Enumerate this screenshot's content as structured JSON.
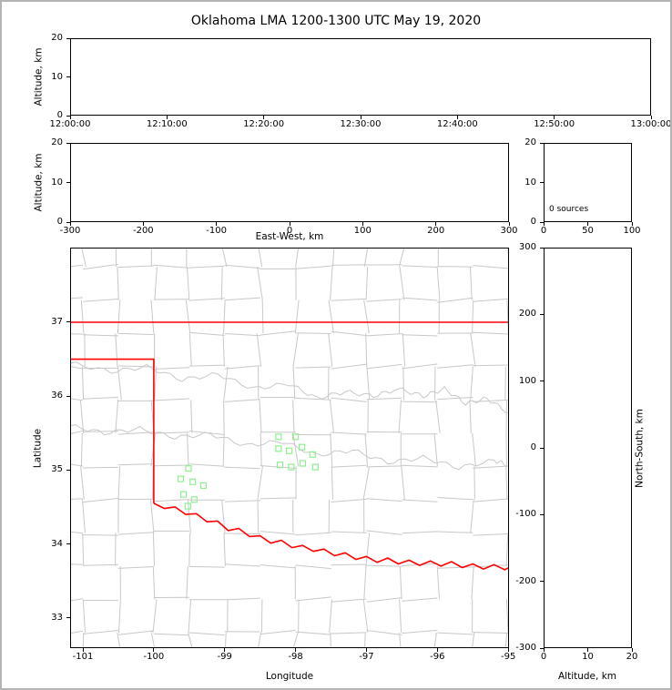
{
  "title": "Oklahoma LMA 1200-1300 UTC May 19, 2020",
  "colors": {
    "background": "#ffffff",
    "outer_border": "#b4b4b4",
    "axis": "#000000"
  },
  "chart_data": [
    {
      "panel": "time-altitude",
      "type": "scatter",
      "ylabel": "Altitude, km",
      "x_tick_labels": [
        "12:00:00",
        "12:10:00",
        "12:20:00",
        "12:30:00",
        "12:40:00",
        "12:50:00",
        "13:00:00"
      ],
      "ylim": [
        0,
        20
      ],
      "yticks": [
        0,
        10,
        20
      ],
      "points": []
    },
    {
      "panel": "ew-altitude",
      "type": "scatter",
      "xlabel": "East-West, km",
      "ylabel": "Altitude, km",
      "xlim": [
        -300,
        300
      ],
      "xticks": [
        -300,
        -200,
        -100,
        0,
        100,
        200,
        300
      ],
      "ylim": [
        0,
        20
      ],
      "yticks": [
        0,
        10,
        20
      ],
      "points": []
    },
    {
      "panel": "source-histogram",
      "type": "line",
      "annotation": "0 sources",
      "xlim": [
        0,
        100
      ],
      "xticks": [
        0,
        50,
        100
      ],
      "ylim": [
        0,
        20
      ],
      "yticks": [
        0,
        10,
        20
      ],
      "points": []
    },
    {
      "panel": "map",
      "type": "scatter",
      "xlabel": "Longitude",
      "ylabel": "Latitude",
      "xlim": [
        -101.18,
        -94.99
      ],
      "xticks": [
        -101,
        -100,
        -99,
        -98,
        -97,
        -96,
        -95
      ],
      "ylim": [
        32.59,
        38.01
      ],
      "yticks": [
        33,
        34,
        35,
        36,
        37
      ],
      "colors": {
        "state_border": "#ff0000",
        "county_lines": "#c8c8c8",
        "station_marker": "#90EE90"
      },
      "stations": [
        [
          -98.24,
          35.45
        ],
        [
          -98.0,
          35.45
        ],
        [
          -98.24,
          35.29
        ],
        [
          -98.09,
          35.26
        ],
        [
          -97.91,
          35.31
        ],
        [
          -98.22,
          35.07
        ],
        [
          -98.06,
          35.04
        ],
        [
          -97.9,
          35.09
        ],
        [
          -97.76,
          35.21
        ],
        [
          -97.72,
          35.04
        ],
        [
          -99.51,
          35.02
        ],
        [
          -99.62,
          34.88
        ],
        [
          -99.45,
          34.84
        ],
        [
          -99.3,
          34.79
        ],
        [
          -99.58,
          34.67
        ],
        [
          -99.43,
          34.6
        ],
        [
          -99.52,
          34.51
        ]
      ],
      "state_border": {
        "north": [
          [
            -101.18,
            37.0
          ],
          [
            -94.99,
            37.0
          ]
        ],
        "west_panhandle": [
          [
            -101.18,
            36.5
          ],
          [
            -100.0,
            36.5
          ],
          [
            -100.0,
            34.55
          ]
        ],
        "red_river": [
          [
            -100.0,
            34.55
          ],
          [
            -99.85,
            34.48
          ],
          [
            -99.7,
            34.5
          ],
          [
            -99.55,
            34.4
          ],
          [
            -99.4,
            34.41
          ],
          [
            -99.25,
            34.3
          ],
          [
            -99.1,
            34.31
          ],
          [
            -98.95,
            34.18
          ],
          [
            -98.8,
            34.21
          ],
          [
            -98.65,
            34.1
          ],
          [
            -98.5,
            34.11
          ],
          [
            -98.35,
            34.01
          ],
          [
            -98.2,
            34.05
          ],
          [
            -98.05,
            33.95
          ],
          [
            -97.9,
            33.98
          ],
          [
            -97.75,
            33.9
          ],
          [
            -97.6,
            33.93
          ],
          [
            -97.45,
            33.84
          ],
          [
            -97.3,
            33.88
          ],
          [
            -97.15,
            33.79
          ],
          [
            -97.0,
            33.83
          ],
          [
            -96.85,
            33.75
          ],
          [
            -96.7,
            33.81
          ],
          [
            -96.55,
            33.73
          ],
          [
            -96.4,
            33.78
          ],
          [
            -96.25,
            33.71
          ],
          [
            -96.1,
            33.77
          ],
          [
            -95.95,
            33.7
          ],
          [
            -95.8,
            33.76
          ],
          [
            -95.65,
            33.68
          ],
          [
            -95.5,
            33.73
          ],
          [
            -95.35,
            33.66
          ],
          [
            -95.2,
            33.72
          ],
          [
            -95.05,
            33.65
          ],
          [
            -94.99,
            33.68
          ]
        ]
      },
      "rivers": [
        [
          [
            -101.18,
            36.45
          ],
          [
            -100.6,
            36.33
          ],
          [
            -100.1,
            36.4
          ],
          [
            -99.6,
            36.22
          ],
          [
            -99.1,
            36.3
          ],
          [
            -98.6,
            36.1
          ],
          [
            -98.1,
            36.17
          ],
          [
            -97.7,
            35.97
          ],
          [
            -97.3,
            36.06
          ],
          [
            -96.9,
            36.0
          ],
          [
            -96.55,
            36.1
          ]
        ],
        [
          [
            -101.18,
            35.6
          ],
          [
            -100.7,
            35.5
          ],
          [
            -100.2,
            35.56
          ],
          [
            -99.7,
            35.44
          ],
          [
            -99.2,
            35.49
          ],
          [
            -98.7,
            35.33
          ],
          [
            -98.2,
            35.39
          ],
          [
            -97.7,
            35.2
          ],
          [
            -97.2,
            35.27
          ],
          [
            -96.7,
            35.1
          ],
          [
            -96.2,
            35.17
          ],
          [
            -95.7,
            35.03
          ],
          [
            -95.2,
            35.13
          ],
          [
            -94.99,
            35.06
          ]
        ],
        [
          [
            -96.55,
            36.1
          ],
          [
            -96.2,
            36.0
          ],
          [
            -95.9,
            36.1
          ],
          [
            -95.6,
            35.9
          ],
          [
            -95.3,
            35.97
          ],
          [
            -94.99,
            35.77
          ]
        ]
      ]
    },
    {
      "panel": "ns-altitude",
      "type": "scatter",
      "xlabel": "Altitude, km",
      "ylabel": "North-South, km",
      "xlim": [
        0,
        20
      ],
      "xticks": [
        0,
        10,
        20
      ],
      "ylim": [
        -300,
        300
      ],
      "yticks": [
        300,
        200,
        100,
        0,
        -100,
        -200,
        -300
      ],
      "points": []
    }
  ]
}
